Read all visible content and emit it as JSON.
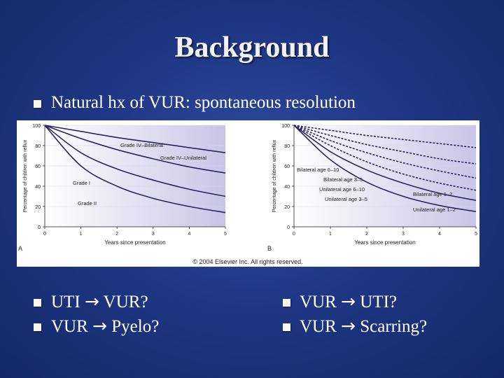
{
  "slide": {
    "title": "Background"
  },
  "bullets": {
    "b1": "Natural hx of VUR: spontaneous resolution",
    "left1_a": "UTI",
    "left1_b": "VUR?",
    "left2_a": "VUR",
    "left2_b": "Pyelo?",
    "right1_a": "VUR",
    "right1_b": "UTI?",
    "right2_a": "VUR",
    "right2_b": "Scarring?",
    "arrow_glyph": "→"
  },
  "figure": {
    "copyright": "© 2004 Elsevier Inc. All rights reserved.",
    "panelA_letter": "A",
    "panelB_letter": "B"
  },
  "chart_data": [
    {
      "type": "line",
      "panel": "A",
      "xlabel": "Years since presentation",
      "ylabel": "Percentage of children with reflux",
      "xlim": [
        0,
        5
      ],
      "ylim": [
        0,
        100
      ],
      "xticks": [
        "0",
        "1",
        "2",
        "3",
        "4",
        "5"
      ],
      "yticks": [
        "0",
        "20",
        "40",
        "60",
        "80",
        "100"
      ],
      "series": [
        {
          "name": "Grade IV–Bilateral",
          "x": [
            0,
            1,
            2,
            3,
            4,
            5
          ],
          "y": [
            100,
            94,
            88,
            83,
            78,
            73
          ]
        },
        {
          "name": "Grade IV–Unilateral",
          "x": [
            0,
            1,
            2,
            3,
            4,
            5
          ],
          "y": [
            100,
            87,
            76,
            67,
            59,
            53
          ]
        },
        {
          "name": "Grade I",
          "x": [
            0,
            1,
            2,
            3,
            4,
            5
          ],
          "y": [
            100,
            73,
            57,
            46,
            37,
            30
          ]
        },
        {
          "name": "Grade II",
          "x": [
            0,
            1,
            2,
            3,
            4,
            5
          ],
          "y": [
            100,
            60,
            40,
            28,
            20,
            14
          ]
        }
      ]
    },
    {
      "type": "line",
      "panel": "B",
      "xlabel": "Years since presentation",
      "ylabel": "Percentage of children with reflux",
      "xlim": [
        0,
        5
      ],
      "ylim": [
        0,
        100
      ],
      "xticks": [
        "0",
        "1",
        "2",
        "3",
        "4",
        "5"
      ],
      "yticks": [
        "0",
        "20",
        "40",
        "60",
        "80",
        "100"
      ],
      "series": [
        {
          "name": "Bilateral age 6–10",
          "x": [
            0,
            1,
            2,
            3,
            4,
            5
          ],
          "y": [
            100,
            95,
            90,
            86,
            82,
            78
          ]
        },
        {
          "name": "Bilateral age 3–5",
          "x": [
            0,
            1,
            2,
            3,
            4,
            5
          ],
          "y": [
            100,
            90,
            81,
            74,
            67,
            62
          ]
        },
        {
          "name": "Unilateral age 6–10",
          "x": [
            0,
            1,
            2,
            3,
            4,
            5
          ],
          "y": [
            100,
            85,
            73,
            63,
            55,
            48
          ]
        },
        {
          "name": "Unilateral age 3–5",
          "x": [
            0,
            1,
            2,
            3,
            4,
            5
          ],
          "y": [
            100,
            80,
            64,
            52,
            43,
            36
          ]
        },
        {
          "name": "Bilateral age 1–2",
          "x": [
            0,
            1,
            2,
            3,
            4,
            5
          ],
          "y": [
            100,
            74,
            56,
            43,
            33,
            26
          ]
        },
        {
          "name": "Unilateral age 1–2",
          "x": [
            0,
            1,
            2,
            3,
            4,
            5
          ],
          "y": [
            100,
            66,
            44,
            30,
            21,
            15
          ]
        }
      ]
    }
  ]
}
